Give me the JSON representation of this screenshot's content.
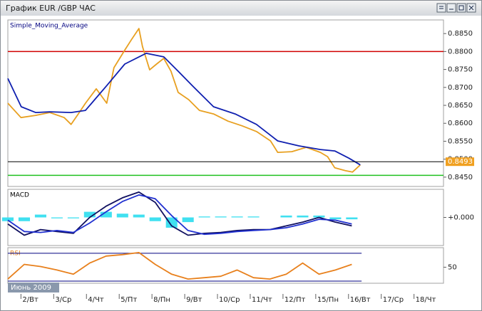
{
  "window": {
    "title": "График EUR /GBP  ЧАС"
  },
  "x_axis": {
    "xlim": [
      -0.4,
      12.9
    ],
    "period_label": "Июнь 2009",
    "xticks": [
      {
        "value": 0,
        "label": "2/Вт"
      },
      {
        "value": 1,
        "label": "3/Ср"
      },
      {
        "value": 2,
        "label": "4/Чт"
      },
      {
        "value": 3,
        "label": "5/Пт"
      },
      {
        "value": 4,
        "label": "8/Пн"
      },
      {
        "value": 5,
        "label": "9/Вт"
      },
      {
        "value": 6,
        "label": "10/Ср"
      },
      {
        "value": 7,
        "label": "11/Чт"
      },
      {
        "value": 8,
        "label": "12/Пт"
      },
      {
        "value": 9,
        "label": "15/Пн"
      },
      {
        "value": 10,
        "label": "16/Вт"
      },
      {
        "value": 11,
        "label": "17/Ср"
      },
      {
        "value": 12,
        "label": "18/Чт"
      }
    ]
  },
  "chart_data": [
    {
      "type": "line",
      "title": "Simple_Moving_Average",
      "title_color": "#000080",
      "ylim": [
        0.8424,
        0.8888
      ],
      "yticks": [
        {
          "value": 0.845,
          "label": "0.8450"
        },
        {
          "value": 0.85,
          "label": "0.8500"
        },
        {
          "value": 0.855,
          "label": "0.8550"
        },
        {
          "value": 0.86,
          "label": "0.8600"
        },
        {
          "value": 0.865,
          "label": "0.8650"
        },
        {
          "value": 0.87,
          "label": "0.8700"
        },
        {
          "value": 0.875,
          "label": "0.8750"
        },
        {
          "value": 0.88,
          "label": "0.8800"
        },
        {
          "value": 0.885,
          "label": "0.8850"
        }
      ],
      "levels": [
        {
          "value": 0.88,
          "color": "#d00000"
        },
        {
          "value": 0.8455,
          "color": "#20c020"
        }
      ],
      "last_price": 0.8493,
      "series": [
        {
          "color": "#e8a020",
          "x": [
            -0.4,
            0.0,
            0.45,
            0.88,
            1.32,
            1.53,
            1.75,
            1.97,
            2.3,
            2.62,
            2.84,
            3.17,
            3.38,
            3.6,
            3.71,
            3.93,
            4.14,
            4.36,
            4.58,
            4.8,
            5.12,
            5.45,
            5.88,
            6.32,
            6.75,
            7.19,
            7.62,
            7.84,
            8.27,
            8.71,
            9.14,
            9.36,
            9.58,
            9.9,
            10.12,
            10.36
          ],
          "values": [
            0.8656,
            0.8616,
            0.8622,
            0.863,
            0.8616,
            0.8597,
            0.8626,
            0.8656,
            0.8696,
            0.8656,
            0.8755,
            0.8804,
            0.8834,
            0.8864,
            0.8814,
            0.8749,
            0.8765,
            0.8781,
            0.8745,
            0.8686,
            0.8666,
            0.8636,
            0.8626,
            0.8606,
            0.8593,
            0.8577,
            0.8551,
            0.8519,
            0.8521,
            0.8533,
            0.8519,
            0.8507,
            0.8476,
            0.8468,
            0.8464,
            0.8484
          ]
        },
        {
          "color": "#1020b0",
          "x": [
            -0.4,
            0.01,
            0.45,
            0.88,
            1.53,
            1.97,
            2.62,
            3.17,
            3.82,
            4.36,
            4.8,
            5.23,
            5.88,
            6.54,
            7.19,
            7.84,
            8.49,
            9.14,
            9.58,
            10.01,
            10.36
          ],
          "values": [
            0.8725,
            0.8646,
            0.863,
            0.8632,
            0.863,
            0.8636,
            0.8705,
            0.8765,
            0.8795,
            0.8785,
            0.8745,
            0.8705,
            0.8646,
            0.8626,
            0.8597,
            0.8551,
            0.8537,
            0.8527,
            0.8523,
            0.8503,
            0.8484
          ]
        }
      ]
    },
    {
      "type": "line",
      "title": "MACD",
      "title_color": "#000000",
      "ylim": [
        -0.003,
        0.003
      ],
      "yticks": [
        {
          "value": 0,
          "label": "+0.000"
        }
      ],
      "series": [
        {
          "type": "bar",
          "color": "#40e0f0",
          "x": [
            -0.4,
            0.1,
            0.6,
            1.1,
            1.6,
            2.1,
            2.6,
            3.1,
            3.6,
            4.1,
            4.6,
            5.1,
            5.6,
            6.1,
            6.6,
            7.1,
            7.6,
            8.1,
            8.6,
            9.1,
            9.6,
            10.1
          ],
          "values": [
            -0.0004,
            -0.0004,
            0.0003,
            -0.0001,
            -0.0001,
            0.0006,
            0.0006,
            0.0004,
            0.0003,
            -0.0004,
            -0.0011,
            -0.0005,
            0.0001,
            0.0001,
            0.0001,
            0.0001,
            0.0,
            0.0002,
            0.0002,
            0.0002,
            -0.0002,
            -0.0002
          ]
        },
        {
          "color": "#101060",
          "x": [
            -0.4,
            0.1,
            0.6,
            1.1,
            1.6,
            2.1,
            2.6,
            3.1,
            3.6,
            4.1,
            4.6,
            5.1,
            5.6,
            6.1,
            6.6,
            7.1,
            7.6,
            8.1,
            8.6,
            9.1,
            9.6,
            10.1
          ],
          "values": [
            -0.0007,
            -0.0019,
            -0.0013,
            -0.0015,
            -0.0017,
            0.0,
            0.0012,
            0.0021,
            0.0027,
            0.0016,
            -0.0009,
            -0.0019,
            -0.0017,
            -0.0016,
            -0.0014,
            -0.0013,
            -0.0013,
            -0.0009,
            -0.0005,
            0.0,
            -0.0005,
            -0.0009
          ]
        },
        {
          "color": "#2030d0",
          "x": [
            -0.4,
            0.1,
            0.6,
            1.1,
            1.6,
            2.1,
            2.6,
            3.1,
            3.6,
            4.1,
            4.6,
            5.1,
            5.6,
            6.1,
            6.6,
            7.1,
            7.6,
            8.1,
            8.6,
            9.1,
            9.6,
            10.1
          ],
          "values": [
            -0.0003,
            -0.0015,
            -0.0016,
            -0.0014,
            -0.0016,
            -0.0006,
            0.0006,
            0.0017,
            0.0024,
            0.002,
            0.0002,
            -0.0014,
            -0.0018,
            -0.0017,
            -0.0015,
            -0.0014,
            -0.0013,
            -0.0011,
            -0.0007,
            -0.0002,
            -0.0003,
            -0.0007
          ]
        }
      ]
    },
    {
      "type": "line",
      "title": "RSI",
      "title_color": "#e08020",
      "ylim": [
        27,
        78
      ],
      "yticks": [
        50
      ],
      "levels": [
        {
          "value": 70,
          "color": "#000080"
        },
        {
          "value": 30,
          "color": "#000080"
        }
      ],
      "series": [
        {
          "color": "#e8801c",
          "x": [
            -0.4,
            0.1,
            0.6,
            1.1,
            1.6,
            2.1,
            2.6,
            3.1,
            3.6,
            4.1,
            4.6,
            5.1,
            5.6,
            6.1,
            6.6,
            7.1,
            7.6,
            8.1,
            8.6,
            9.1,
            9.6,
            10.1
          ],
          "values": [
            33,
            54,
            51,
            46,
            40,
            56,
            66,
            68,
            71,
            54,
            40,
            33,
            35,
            37,
            46,
            35,
            33,
            40,
            56,
            40,
            46,
            54
          ]
        }
      ]
    }
  ]
}
